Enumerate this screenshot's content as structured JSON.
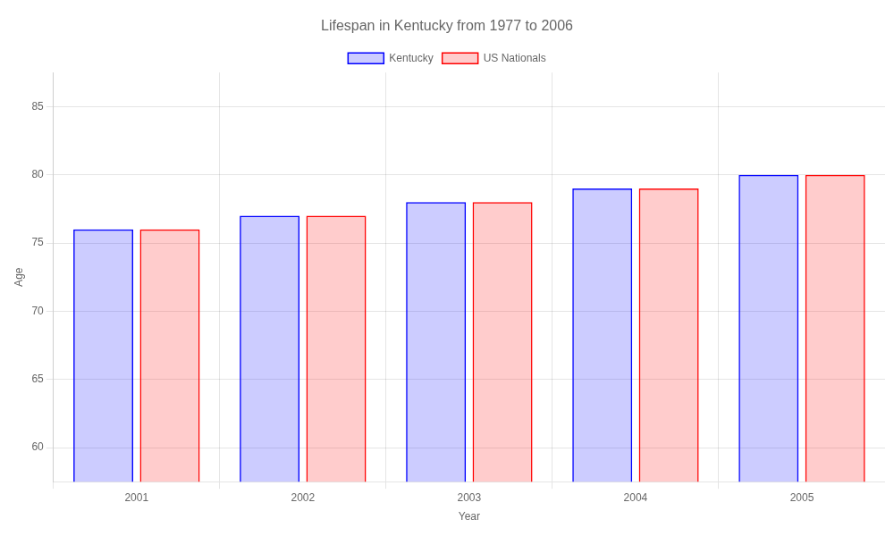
{
  "chart_data": {
    "type": "bar",
    "title": "Lifespan in Kentucky from 1977 to 2006",
    "x_label": "Year",
    "y_label": "Age",
    "categories": [
      "2001",
      "2002",
      "2003",
      "2004",
      "2005"
    ],
    "series": [
      {
        "name": "Kentucky",
        "color": "#0000ff",
        "values": [
          76,
          77,
          78,
          79,
          80
        ]
      },
      {
        "name": "US Nationals",
        "color": "#ff0000",
        "values": [
          76,
          77,
          78,
          79,
          80
        ]
      }
    ],
    "ylim": [
      57.5,
      87.5
    ],
    "yticks": [
      60,
      65,
      70,
      75,
      80,
      85
    ],
    "grid": true,
    "legend": "top"
  }
}
